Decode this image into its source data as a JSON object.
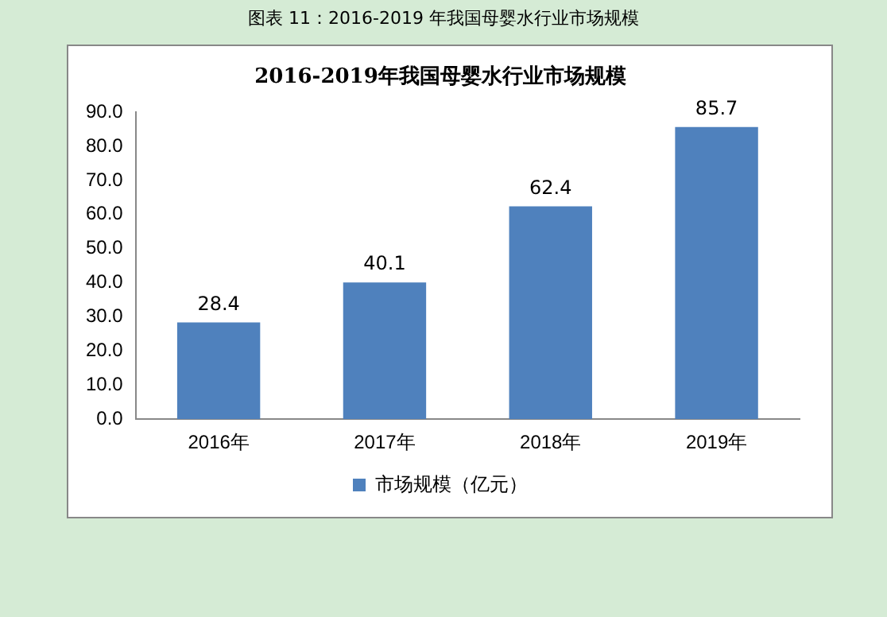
{
  "chart_data": {
    "type": "bar",
    "title": "2016-2019年我国母婴水行业市场规模",
    "annotations": [
      "图表 11：2016-2019 年我国母婴水行业市场规模"
    ],
    "categories": [
      "2016年",
      "2017年",
      "2018年",
      "2019年"
    ],
    "series": [
      {
        "name": "市场规模（亿元）",
        "color": "#4f81bd",
        "values": [
          28.4,
          40.1,
          62.4,
          85.7
        ]
      }
    ],
    "ylim": [
      0,
      90
    ],
    "yticks": [
      {
        "value": 0,
        "label": "0.0"
      },
      {
        "value": 10,
        "label": "10.0"
      },
      {
        "value": 20,
        "label": "20.0"
      },
      {
        "value": 30,
        "label": "30.0"
      },
      {
        "value": 40,
        "label": "40.0"
      },
      {
        "value": 50,
        "label": "50.0"
      },
      {
        "value": 60,
        "label": "60.0"
      },
      {
        "value": 70,
        "label": "70.0"
      },
      {
        "value": 80,
        "label": "80.0"
      },
      {
        "value": 90,
        "label": "90.0"
      }
    ],
    "data_labels": true,
    "grid": false,
    "legend": "bottom"
  }
}
